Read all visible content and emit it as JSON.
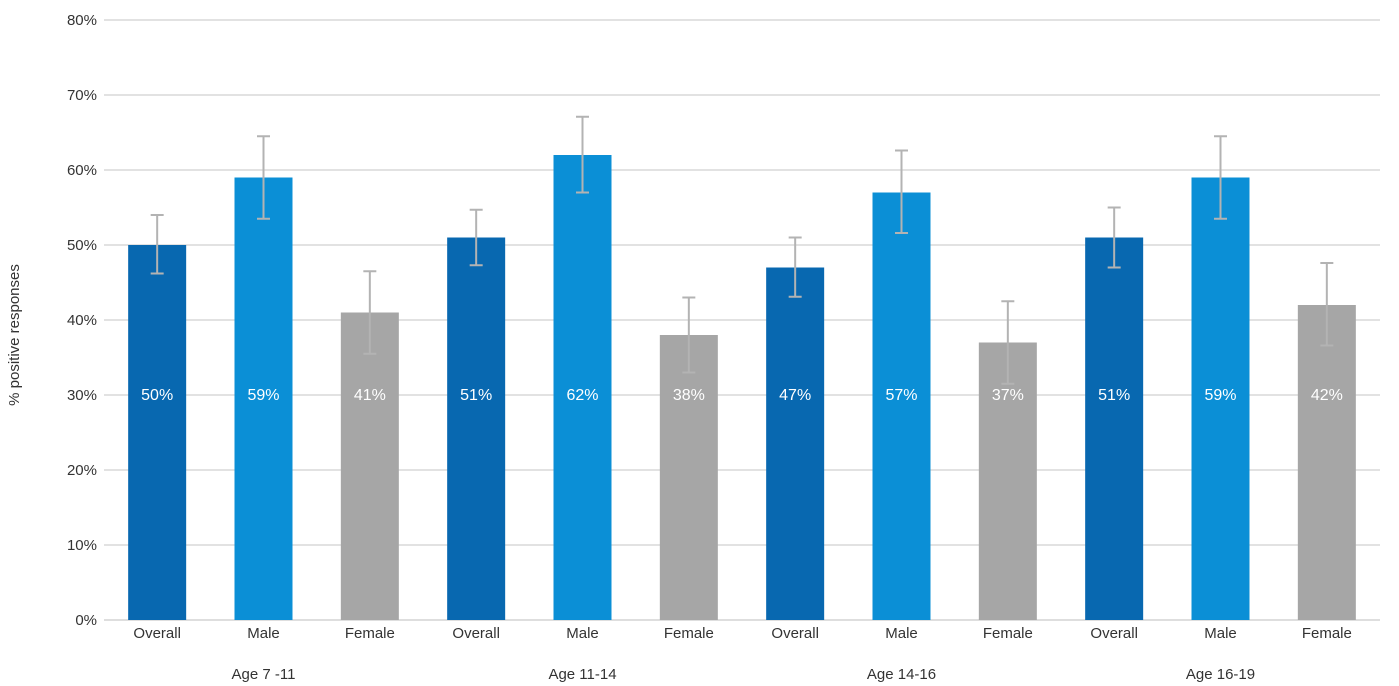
{
  "chart_data": {
    "type": "bar",
    "ylabel": "% positive responses",
    "ylim": [
      0,
      80
    ],
    "yticks": [
      "0%",
      "10%",
      "20%",
      "30%",
      "40%",
      "50%",
      "60%",
      "70%",
      "80%"
    ],
    "grid": true,
    "groups": [
      {
        "label": "Age 7 -11",
        "bars": [
          {
            "category": "Overall",
            "value": 50,
            "label": "50%",
            "error_low": 46.2,
            "error_high": 54.0,
            "color": "#0868b0"
          },
          {
            "category": "Male",
            "value": 59,
            "label": "59%",
            "error_low": 53.5,
            "error_high": 64.5,
            "color": "#0b8fd6"
          },
          {
            "category": "Female",
            "value": 41,
            "label": "41%",
            "error_low": 35.5,
            "error_high": 46.5,
            "color": "#a6a6a6"
          }
        ]
      },
      {
        "label": "Age 11-14",
        "bars": [
          {
            "category": "Overall",
            "value": 51,
            "label": "51%",
            "error_low": 47.3,
            "error_high": 54.7,
            "color": "#0868b0"
          },
          {
            "category": "Male",
            "value": 62,
            "label": "62%",
            "error_low": 57.0,
            "error_high": 67.1,
            "color": "#0b8fd6"
          },
          {
            "category": "Female",
            "value": 38,
            "label": "38%",
            "error_low": 33.0,
            "error_high": 43.0,
            "color": "#a6a6a6"
          }
        ]
      },
      {
        "label": "Age 14-16",
        "bars": [
          {
            "category": "Overall",
            "value": 47,
            "label": "47%",
            "error_low": 43.1,
            "error_high": 51.0,
            "color": "#0868b0"
          },
          {
            "category": "Male",
            "value": 57,
            "label": "57%",
            "error_low": 51.6,
            "error_high": 62.6,
            "color": "#0b8fd6"
          },
          {
            "category": "Female",
            "value": 37,
            "label": "37%",
            "error_low": 31.5,
            "error_high": 42.5,
            "color": "#a6a6a6"
          }
        ]
      },
      {
        "label": "Age 16-19",
        "bars": [
          {
            "category": "Overall",
            "value": 51,
            "label": "51%",
            "error_low": 47.0,
            "error_high": 55.0,
            "color": "#0868b0"
          },
          {
            "category": "Male",
            "value": 59,
            "label": "59%",
            "error_low": 53.5,
            "error_high": 64.5,
            "color": "#0b8fd6"
          },
          {
            "category": "Female",
            "value": 42,
            "label": "42%",
            "error_low": 36.6,
            "error_high": 47.6,
            "color": "#a6a6a6"
          }
        ]
      }
    ],
    "colors": {
      "grid": "#d9d9d9",
      "error_bar": "#b3b3b3",
      "axis_text": "#333333",
      "data_label": "#ffffff"
    }
  }
}
